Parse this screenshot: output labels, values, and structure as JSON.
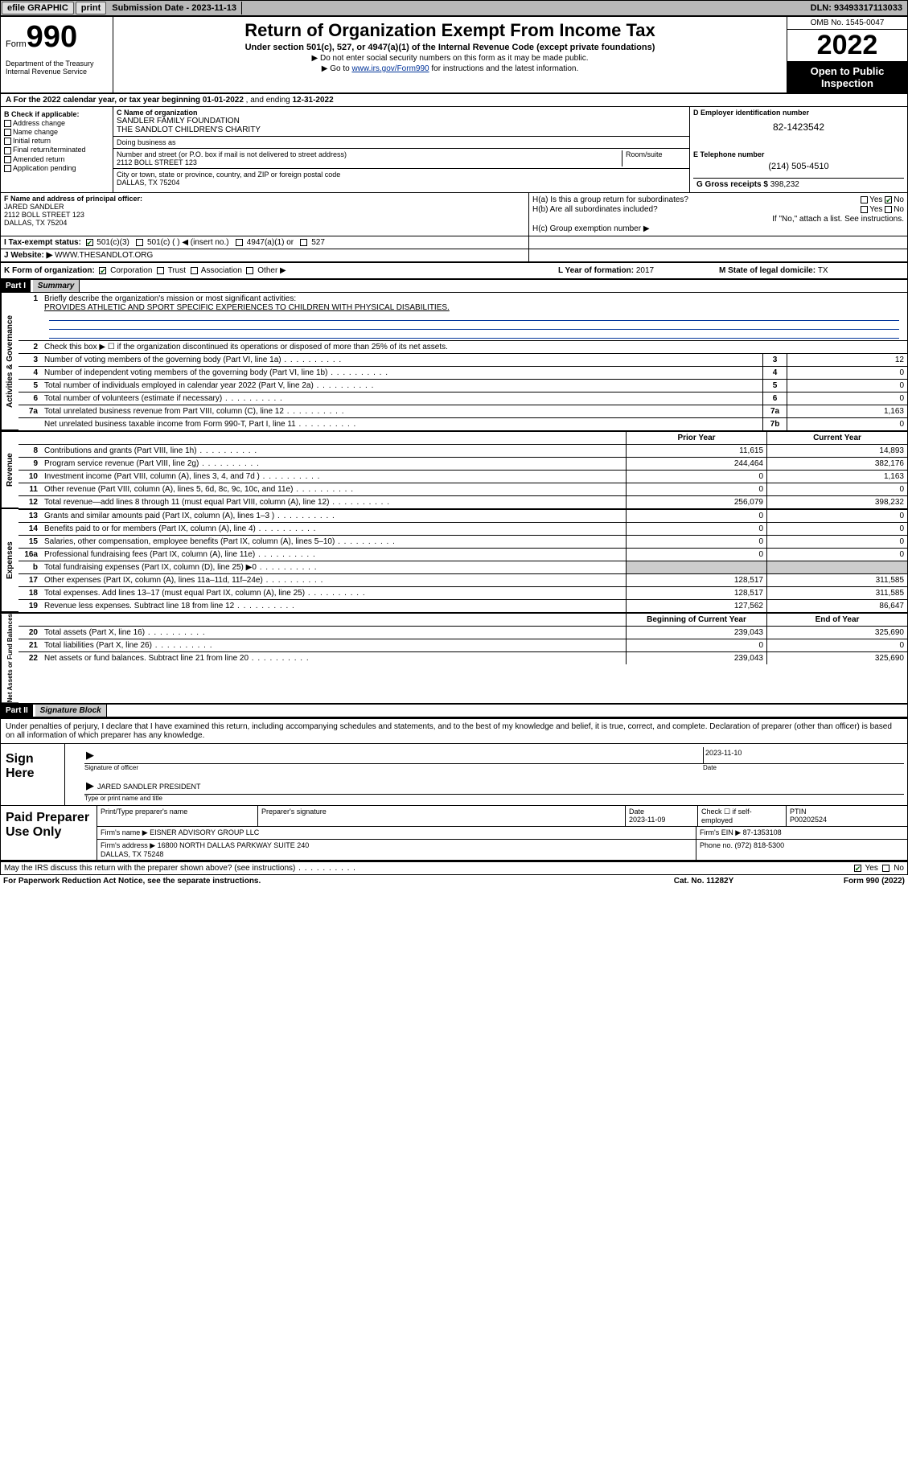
{
  "topbar": {
    "efile": "efile GRAPHIC",
    "print": "print",
    "sub_label": "Submission Date - ",
    "sub_date": "2023-11-13",
    "dln_label": "DLN: ",
    "dln": "93493317113033"
  },
  "header": {
    "form_word": "Form",
    "form_num": "990",
    "dept": "Department of the Treasury\nInternal Revenue Service",
    "title": "Return of Organization Exempt From Income Tax",
    "sub": "Under section 501(c), 527, or 4947(a)(1) of the Internal Revenue Code (except private foundations)",
    "sub2a": "▶ Do not enter social security numbers on this form as it may be made public.",
    "sub2b_pre": "▶ Go to ",
    "sub2b_link": "www.irs.gov/Form990",
    "sub2b_post": " for instructions and the latest information.",
    "omb": "OMB No. 1545-0047",
    "year": "2022",
    "open": "Open to Public Inspection"
  },
  "row_a": {
    "text_pre": "A For the 2022 calendar year, or tax year beginning ",
    "begin": "01-01-2022",
    "mid": " , and ending ",
    "end": "12-31-2022"
  },
  "b": {
    "label": "B Check if applicable:",
    "addr": "Address change",
    "name": "Name change",
    "init": "Initial return",
    "final": "Final return/terminated",
    "amend": "Amended return",
    "app": "Application pending"
  },
  "c": {
    "name_label": "C Name of organization",
    "name1": "SANDLER FAMILY FOUNDATION",
    "name2": "THE SANDLOT CHILDREN'S CHARITY",
    "dba_label": "Doing business as",
    "addr_label": "Number and street (or P.O. box if mail is not delivered to street address)",
    "room_label": "Room/suite",
    "addr": "2112 BOLL STREET 123",
    "city_label": "City or town, state or province, country, and ZIP or foreign postal code",
    "city": "DALLAS, TX  75204"
  },
  "d": {
    "label": "D Employer identification number",
    "ein": "82-1423542"
  },
  "e": {
    "label": "E Telephone number",
    "phone": "(214) 505-4510"
  },
  "g": {
    "label": "G Gross receipts $ ",
    "val": "398,232"
  },
  "f": {
    "label": "F Name and address of principal officer:",
    "name": "JARED SANDLER",
    "addr1": "2112 BOLL STREET 123",
    "addr2": "DALLAS, TX  75204"
  },
  "h": {
    "a_label": "H(a)  Is this a group return for subordinates?",
    "b_label": "H(b)  Are all subordinates included?",
    "attach": "If \"No,\" attach a list. See instructions.",
    "c_label": "H(c)  Group exemption number ▶",
    "yes": "Yes",
    "no": "No"
  },
  "i": {
    "label": "I   Tax-exempt status:",
    "o1": "501(c)(3)",
    "o2": "501(c) (  ) ◀ (insert no.)",
    "o3": "4947(a)(1) or",
    "o4": "527"
  },
  "j": {
    "label": "J   Website: ▶ ",
    "val": "WWW.THESANDLOT.ORG"
  },
  "k": {
    "label": "K Form of organization:",
    "corp": "Corporation",
    "trust": "Trust",
    "assoc": "Association",
    "other": "Other ▶"
  },
  "l": {
    "label": "L Year of formation: ",
    "val": "2017"
  },
  "m": {
    "label": "M State of legal domicile: ",
    "val": "TX"
  },
  "part1": {
    "hdr": "Part I",
    "sub": "Summary"
  },
  "side": {
    "gov": "Activities & Governance",
    "rev": "Revenue",
    "exp": "Expenses",
    "net": "Net Assets or Fund Balances"
  },
  "s1": {
    "label": "Briefly describe the organization's mission or most significant activities:",
    "val": "PROVIDES ATHLETIC AND SPORT SPECIFIC EXPERIENCES TO CHILDREN WITH PHYSICAL DISABILITIES."
  },
  "s2": "Check this box ▶ ☐ if the organization discontinued its operations or disposed of more than 25% of its net assets.",
  "lines_single": [
    {
      "n": "3",
      "t": "Number of voting members of the governing body (Part VI, line 1a)",
      "ln": "3",
      "v": "12"
    },
    {
      "n": "4",
      "t": "Number of independent voting members of the governing body (Part VI, line 1b)",
      "ln": "4",
      "v": "0"
    },
    {
      "n": "5",
      "t": "Total number of individuals employed in calendar year 2022 (Part V, line 2a)",
      "ln": "5",
      "v": "0"
    },
    {
      "n": "6",
      "t": "Total number of volunteers (estimate if necessary)",
      "ln": "6",
      "v": "0"
    },
    {
      "n": "7a",
      "t": "Total unrelated business revenue from Part VIII, column (C), line 12",
      "ln": "7a",
      "v": "1,163"
    },
    {
      "n": "",
      "t": "Net unrelated business taxable income from Form 990-T, Part I, line 11",
      "ln": "7b",
      "v": "0"
    }
  ],
  "col_hdr": {
    "py": "Prior Year",
    "cy": "Current Year"
  },
  "lines_rev": [
    {
      "n": "8",
      "t": "Contributions and grants (Part VIII, line 1h)",
      "py": "11,615",
      "cy": "14,893"
    },
    {
      "n": "9",
      "t": "Program service revenue (Part VIII, line 2g)",
      "py": "244,464",
      "cy": "382,176"
    },
    {
      "n": "10",
      "t": "Investment income (Part VIII, column (A), lines 3, 4, and 7d )",
      "py": "0",
      "cy": "1,163"
    },
    {
      "n": "11",
      "t": "Other revenue (Part VIII, column (A), lines 5, 6d, 8c, 9c, 10c, and 11e)",
      "py": "0",
      "cy": "0"
    },
    {
      "n": "12",
      "t": "Total revenue—add lines 8 through 11 (must equal Part VIII, column (A), line 12)",
      "py": "256,079",
      "cy": "398,232"
    }
  ],
  "lines_exp": [
    {
      "n": "13",
      "t": "Grants and similar amounts paid (Part IX, column (A), lines 1–3 )",
      "py": "0",
      "cy": "0"
    },
    {
      "n": "14",
      "t": "Benefits paid to or for members (Part IX, column (A), line 4)",
      "py": "0",
      "cy": "0"
    },
    {
      "n": "15",
      "t": "Salaries, other compensation, employee benefits (Part IX, column (A), lines 5–10)",
      "py": "0",
      "cy": "0"
    },
    {
      "n": "16a",
      "t": "Professional fundraising fees (Part IX, column (A), line 11e)",
      "py": "0",
      "cy": "0"
    },
    {
      "n": "b",
      "t": "Total fundraising expenses (Part IX, column (D), line 25) ▶0",
      "py": "",
      "cy": "",
      "shade": true
    },
    {
      "n": "17",
      "t": "Other expenses (Part IX, column (A), lines 11a–11d, 11f–24e)",
      "py": "128,517",
      "cy": "311,585"
    },
    {
      "n": "18",
      "t": "Total expenses. Add lines 13–17 (must equal Part IX, column (A), line 25)",
      "py": "128,517",
      "cy": "311,585"
    },
    {
      "n": "19",
      "t": "Revenue less expenses. Subtract line 18 from line 12",
      "py": "127,562",
      "cy": "86,647"
    }
  ],
  "col_hdr2": {
    "py": "Beginning of Current Year",
    "cy": "End of Year"
  },
  "lines_net": [
    {
      "n": "20",
      "t": "Total assets (Part X, line 16)",
      "py": "239,043",
      "cy": "325,690"
    },
    {
      "n": "21",
      "t": "Total liabilities (Part X, line 26)",
      "py": "0",
      "cy": "0"
    },
    {
      "n": "22",
      "t": "Net assets or fund balances. Subtract line 21 from line 20",
      "py": "239,043",
      "cy": "325,690"
    }
  ],
  "part2": {
    "hdr": "Part II",
    "sub": "Signature Block"
  },
  "sig_intro": "Under penalties of perjury, I declare that I have examined this return, including accompanying schedules and statements, and to the best of my knowledge and belief, it is true, correct, and complete. Declaration of preparer (other than officer) is based on all information of which preparer has any knowledge.",
  "sign": {
    "here": "Sign Here",
    "sig_label": "Signature of officer",
    "date_label": "Date",
    "date": "2023-11-10",
    "name_label": "Type or print name and title",
    "name": "JARED SANDLER PRESIDENT"
  },
  "paid": {
    "title": "Paid Preparer Use Only",
    "h1": "Print/Type preparer's name",
    "h2": "Preparer's signature",
    "h3": "Date",
    "h3v": "2023-11-09",
    "h4": "Check ☐ if self-employed",
    "h5": "PTIN",
    "h5v": "P00202524",
    "firm_label": "Firm's name    ▶ ",
    "firm": "EISNER ADVISORY GROUP LLC",
    "ein_label": "Firm's EIN ▶ ",
    "ein": "87-1353108",
    "addr_label": "Firm's address ▶ ",
    "addr": "16800 NORTH DALLAS PARKWAY SUITE 240\nDALLAS, TX  75248",
    "phone_label": "Phone no. ",
    "phone": "(972) 818-5300"
  },
  "discuss": {
    "q": "May the IRS discuss this return with the preparer shown above? (see instructions)",
    "yes": "Yes",
    "no": "No"
  },
  "footer": {
    "pra": "For Paperwork Reduction Act Notice, see the separate instructions.",
    "cat": "Cat. No. 11282Y",
    "form": "Form 990 (2022)"
  }
}
